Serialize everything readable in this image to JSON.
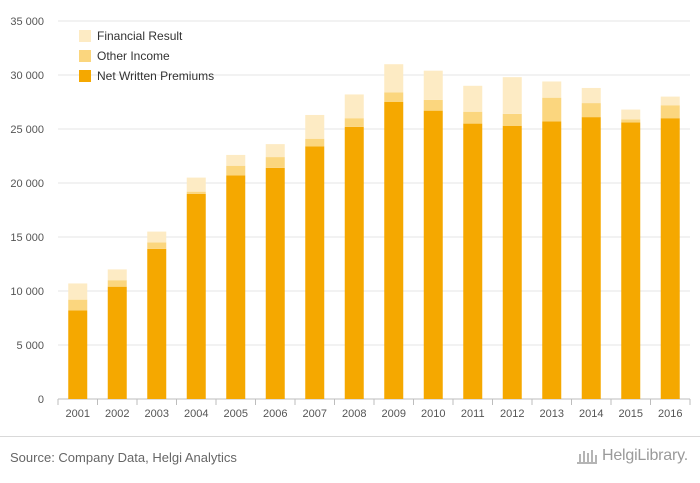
{
  "chart_data": {
    "type": "bar",
    "stacked": true,
    "categories": [
      "2001",
      "2002",
      "2003",
      "2004",
      "2005",
      "2006",
      "2007",
      "2008",
      "2009",
      "2010",
      "2011",
      "2012",
      "2013",
      "2014",
      "2015",
      "2016"
    ],
    "series": [
      {
        "name": "Net Written Premiums",
        "color": "#f5a800",
        "values": [
          8200,
          10400,
          13900,
          19000,
          20700,
          21400,
          23400,
          25200,
          27500,
          26700,
          25500,
          25300,
          25700,
          26100,
          25600,
          26000
        ]
      },
      {
        "name": "Other Income",
        "color": "#fbd67e",
        "values": [
          1000,
          600,
          600,
          200,
          900,
          1000,
          700,
          800,
          900,
          1000,
          1100,
          1100,
          2200,
          1300,
          300,
          1200
        ]
      },
      {
        "name": "Financial Result",
        "color": "#fdebc4",
        "values": [
          1500,
          1000,
          1000,
          1300,
          1000,
          1200,
          2200,
          2200,
          2600,
          2700,
          2400,
          3400,
          1500,
          1400,
          900,
          800
        ]
      }
    ],
    "ylim": [
      0,
      35000
    ],
    "yticks": [
      0,
      5000,
      10000,
      15000,
      20000,
      25000,
      30000,
      35000
    ],
    "ytick_labels": [
      "0",
      "5 000",
      "10 000",
      "15 000",
      "20 000",
      "25 000",
      "30 000",
      "35 000"
    ],
    "grid": true,
    "legend_position": "top-left",
    "legend_order": [
      "Financial Result",
      "Other Income",
      "Net Written Premiums"
    ]
  },
  "footer": {
    "source": "Source: Company Data, Helgi Analytics",
    "brand": "HelgiLibrary."
  }
}
